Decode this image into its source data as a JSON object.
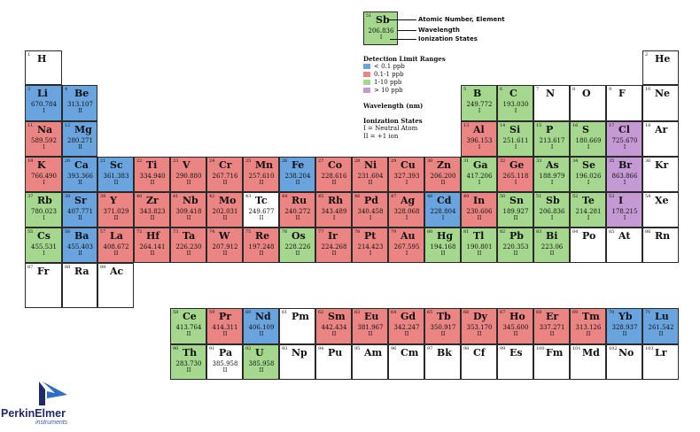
{
  "colors": {
    "blue": "#6aa4df",
    "red": "#ea8583",
    "green": "#a5d88e",
    "purple": "#c59ad4",
    "white": "#ffffff"
  },
  "key": {
    "z": "51",
    "symbol": "Sb",
    "wavelength": "206.836",
    "ion": "I",
    "color": "green",
    "label_element": "Atomic Number, Element",
    "label_wavelength": "Wavelength",
    "label_ion": "Ionization States"
  },
  "legend": {
    "detection_title": "Detection Limit Ranges",
    "ranges": [
      {
        "label": "< 0.1 ppb",
        "color": "blue"
      },
      {
        "label": "0.1-1 ppb",
        "color": "red"
      },
      {
        "label": "1-10 ppb",
        "color": "green"
      },
      {
        "label": "> 10 ppb",
        "color": "purple"
      }
    ],
    "wavelength_label": "Wavelength (nm)",
    "ion_title": "Ionization States",
    "ion_lines": [
      "I = Neutral Atom",
      "II = +1 ion"
    ]
  },
  "elements": [
    {
      "z": "1",
      "s": "H",
      "c": "white",
      "w": "",
      "i": "",
      "row": 0,
      "col": 0
    },
    {
      "z": "2",
      "s": "He",
      "c": "white",
      "w": "",
      "i": "",
      "row": 0,
      "col": 17
    },
    {
      "z": "3",
      "s": "Li",
      "c": "blue",
      "w": "670.784",
      "i": "I",
      "row": 1,
      "col": 0
    },
    {
      "z": "4",
      "s": "Be",
      "c": "blue",
      "w": "313.107",
      "i": "II",
      "row": 1,
      "col": 1
    },
    {
      "z": "5",
      "s": "B",
      "c": "green",
      "w": "249.772",
      "i": "I",
      "row": 1,
      "col": 12
    },
    {
      "z": "6",
      "s": "C",
      "c": "green",
      "w": "193.030",
      "i": "I",
      "row": 1,
      "col": 13
    },
    {
      "z": "7",
      "s": "N",
      "c": "white",
      "w": "",
      "i": "",
      "row": 1,
      "col": 14
    },
    {
      "z": "8",
      "s": "O",
      "c": "white",
      "w": "",
      "i": "",
      "row": 1,
      "col": 15
    },
    {
      "z": "9",
      "s": "F",
      "c": "white",
      "w": "",
      "i": "",
      "row": 1,
      "col": 16
    },
    {
      "z": "10",
      "s": "Ne",
      "c": "white",
      "w": "",
      "i": "",
      "row": 1,
      "col": 17
    },
    {
      "z": "11",
      "s": "Na",
      "c": "red",
      "w": "589.592",
      "i": "I",
      "row": 2,
      "col": 0
    },
    {
      "z": "12",
      "s": "Mg",
      "c": "blue",
      "w": "280.271",
      "i": "II",
      "row": 2,
      "col": 1
    },
    {
      "z": "13",
      "s": "Al",
      "c": "red",
      "w": "396.153",
      "i": "I",
      "row": 2,
      "col": 12
    },
    {
      "z": "14",
      "s": "Si",
      "c": "green",
      "w": "251.611",
      "i": "I",
      "row": 2,
      "col": 13
    },
    {
      "z": "15",
      "s": "P",
      "c": "green",
      "w": "213.617",
      "i": "I",
      "row": 2,
      "col": 14
    },
    {
      "z": "16",
      "s": "S",
      "c": "green",
      "w": "180.669",
      "i": "I",
      "row": 2,
      "col": 15
    },
    {
      "z": "17",
      "s": "Cl",
      "c": "purple",
      "w": "725.670",
      "i": "I",
      "row": 2,
      "col": 16
    },
    {
      "z": "18",
      "s": "Ar",
      "c": "white",
      "w": "",
      "i": "",
      "row": 2,
      "col": 17
    },
    {
      "z": "19",
      "s": "K",
      "c": "red",
      "w": "766.490",
      "i": "I",
      "row": 3,
      "col": 0
    },
    {
      "z": "20",
      "s": "Ca",
      "c": "blue",
      "w": "393.366",
      "i": "II",
      "row": 3,
      "col": 1
    },
    {
      "z": "21",
      "s": "Sc",
      "c": "blue",
      "w": "361.383",
      "i": "II",
      "row": 3,
      "col": 2
    },
    {
      "z": "22",
      "s": "Ti",
      "c": "red",
      "w": "334.940",
      "i": "II",
      "row": 3,
      "col": 3
    },
    {
      "z": "23",
      "s": "V",
      "c": "red",
      "w": "290.880",
      "i": "II",
      "row": 3,
      "col": 4
    },
    {
      "z": "24",
      "s": "Cr",
      "c": "red",
      "w": "267.716",
      "i": "II",
      "row": 3,
      "col": 5
    },
    {
      "z": "25",
      "s": "Mn",
      "c": "red",
      "w": "257.610",
      "i": "II",
      "row": 3,
      "col": 6
    },
    {
      "z": "26",
      "s": "Fe",
      "c": "blue",
      "w": "238.204",
      "i": "II",
      "row": 3,
      "col": 7
    },
    {
      "z": "27",
      "s": "Co",
      "c": "red",
      "w": "228.616",
      "i": "II",
      "row": 3,
      "col": 8
    },
    {
      "z": "28",
      "s": "Ni",
      "c": "red",
      "w": "231.604",
      "i": "II",
      "row": 3,
      "col": 9
    },
    {
      "z": "29",
      "s": "Cu",
      "c": "red",
      "w": "327.393",
      "i": "I",
      "row": 3,
      "col": 10
    },
    {
      "z": "30",
      "s": "Zn",
      "c": "red",
      "w": "206.200",
      "i": "II",
      "row": 3,
      "col": 11
    },
    {
      "z": "31",
      "s": "Ga",
      "c": "green",
      "w": "417.206",
      "i": "I",
      "row": 3,
      "col": 12
    },
    {
      "z": "32",
      "s": "Ge",
      "c": "red",
      "w": "265.118",
      "i": "I",
      "row": 3,
      "col": 13
    },
    {
      "z": "33",
      "s": "As",
      "c": "green",
      "w": "188.979",
      "i": "I",
      "row": 3,
      "col": 14
    },
    {
      "z": "34",
      "s": "Se",
      "c": "green",
      "w": "196.026",
      "i": "I",
      "row": 3,
      "col": 15
    },
    {
      "z": "35",
      "s": "Br",
      "c": "purple",
      "w": "863.866",
      "i": "I",
      "row": 3,
      "col": 16
    },
    {
      "z": "36",
      "s": "Kr",
      "c": "white",
      "w": "",
      "i": "",
      "row": 3,
      "col": 17
    },
    {
      "z": "37",
      "s": "Rb",
      "c": "green",
      "w": "780.023",
      "i": "I",
      "row": 4,
      "col": 0
    },
    {
      "z": "38",
      "s": "Sr",
      "c": "blue",
      "w": "407.771",
      "i": "II",
      "row": 4,
      "col": 1
    },
    {
      "z": "39",
      "s": "Y",
      "c": "red",
      "w": "371.029",
      "i": "II",
      "row": 4,
      "col": 2
    },
    {
      "z": "40",
      "s": "Zr",
      "c": "red",
      "w": "343.823",
      "i": "II",
      "row": 4,
      "col": 3
    },
    {
      "z": "41",
      "s": "Nb",
      "c": "red",
      "w": "309.418",
      "i": "II",
      "row": 4,
      "col": 4
    },
    {
      "z": "42",
      "s": "Mo",
      "c": "red",
      "w": "202.031",
      "i": "II",
      "row": 4,
      "col": 5
    },
    {
      "z": "43",
      "s": "Tc",
      "c": "white",
      "w": "249.677",
      "i": "II",
      "row": 4,
      "col": 6
    },
    {
      "z": "44",
      "s": "Ru",
      "c": "red",
      "w": "240.272",
      "i": "II",
      "row": 4,
      "col": 7
    },
    {
      "z": "45",
      "s": "Rh",
      "c": "red",
      "w": "343.489",
      "i": "I",
      "row": 4,
      "col": 8
    },
    {
      "z": "46",
      "s": "Pd",
      "c": "red",
      "w": "340.458",
      "i": "I",
      "row": 4,
      "col": 9
    },
    {
      "z": "47",
      "s": "Ag",
      "c": "red",
      "w": "328.068",
      "i": "I",
      "row": 4,
      "col": 10
    },
    {
      "z": "48",
      "s": "Cd",
      "c": "blue",
      "w": "228.804",
      "i": "I",
      "row": 4,
      "col": 11
    },
    {
      "z": "49",
      "s": "In",
      "c": "red",
      "w": "230.606",
      "i": "II",
      "row": 4,
      "col": 12
    },
    {
      "z": "50",
      "s": "Sn",
      "c": "green",
      "w": "189.927",
      "i": "II",
      "row": 4,
      "col": 13
    },
    {
      "z": "51",
      "s": "Sb",
      "c": "green",
      "w": "206.836",
      "i": "I",
      "row": 4,
      "col": 14
    },
    {
      "z": "52",
      "s": "Te",
      "c": "green",
      "w": "214.281",
      "i": "I",
      "row": 4,
      "col": 15
    },
    {
      "z": "53",
      "s": "I",
      "c": "purple",
      "w": "178.215",
      "i": "I",
      "row": 4,
      "col": 16
    },
    {
      "z": "54",
      "s": "Xe",
      "c": "white",
      "w": "",
      "i": "",
      "row": 4,
      "col": 17
    },
    {
      "z": "55",
      "s": "Cs",
      "c": "green",
      "w": "455.531",
      "i": "I",
      "row": 5,
      "col": 0
    },
    {
      "z": "56",
      "s": "Ba",
      "c": "blue",
      "w": "455.403",
      "i": "II",
      "row": 5,
      "col": 1
    },
    {
      "z": "57",
      "s": "La",
      "c": "red",
      "w": "408.672",
      "i": "II",
      "row": 5,
      "col": 2
    },
    {
      "z": "72",
      "s": "Hf",
      "c": "red",
      "w": "264.141",
      "i": "II",
      "row": 5,
      "col": 3
    },
    {
      "z": "73",
      "s": "Ta",
      "c": "red",
      "w": "226.230",
      "i": "II",
      "row": 5,
      "col": 4
    },
    {
      "z": "74",
      "s": "W",
      "c": "red",
      "w": "207.912",
      "i": "II",
      "row": 5,
      "col": 5
    },
    {
      "z": "75",
      "s": "Re",
      "c": "red",
      "w": "197.248",
      "i": "II",
      "row": 5,
      "col": 6
    },
    {
      "z": "76",
      "s": "Os",
      "c": "green",
      "w": "228.226",
      "i": "II",
      "row": 5,
      "col": 7
    },
    {
      "z": "77",
      "s": "Ir",
      "c": "red",
      "w": "224.268",
      "i": "II",
      "row": 5,
      "col": 8
    },
    {
      "z": "78",
      "s": "Pt",
      "c": "red",
      "w": "214.423",
      "i": "I",
      "row": 5,
      "col": 9
    },
    {
      "z": "79",
      "s": "Au",
      "c": "red",
      "w": "267.595",
      "i": "I",
      "row": 5,
      "col": 10
    },
    {
      "z": "80",
      "s": "Hg",
      "c": "green",
      "w": "194.168",
      "i": "II",
      "row": 5,
      "col": 11
    },
    {
      "z": "81",
      "s": "Tl",
      "c": "green",
      "w": "190.801",
      "i": "II",
      "row": 5,
      "col": 12
    },
    {
      "z": "82",
      "s": "Pb",
      "c": "green",
      "w": "220.353",
      "i": "II",
      "row": 5,
      "col": 13
    },
    {
      "z": "83",
      "s": "Bi",
      "c": "green",
      "w": "223.06",
      "i": "II",
      "row": 5,
      "col": 14
    },
    {
      "z": "84",
      "s": "Po",
      "c": "white",
      "w": "",
      "i": "",
      "row": 5,
      "col": 15
    },
    {
      "z": "85",
      "s": "At",
      "c": "white",
      "w": "",
      "i": "",
      "row": 5,
      "col": 16
    },
    {
      "z": "86",
      "s": "Rn",
      "c": "white",
      "w": "",
      "i": "",
      "row": 5,
      "col": 17
    },
    {
      "z": "87",
      "s": "Fr",
      "c": "white",
      "w": "",
      "i": "",
      "row": 6,
      "col": 0
    },
    {
      "z": "88",
      "s": "Ra",
      "c": "white",
      "w": "",
      "i": "",
      "row": 6,
      "col": 1
    },
    {
      "z": "89",
      "s": "Ac",
      "c": "white",
      "w": "",
      "i": "",
      "row": 6,
      "col": 2
    },
    {
      "z": "58",
      "s": "Ce",
      "c": "green",
      "w": "413.764",
      "i": "II",
      "row": 7,
      "col": 4
    },
    {
      "z": "59",
      "s": "Pr",
      "c": "red",
      "w": "414.311",
      "i": "II",
      "row": 7,
      "col": 5
    },
    {
      "z": "60",
      "s": "Nd",
      "c": "blue",
      "w": "406.109",
      "i": "II",
      "row": 7,
      "col": 6
    },
    {
      "z": "61",
      "s": "Pm",
      "c": "white",
      "w": "",
      "i": "",
      "row": 7,
      "col": 7
    },
    {
      "z": "62",
      "s": "Sm",
      "c": "red",
      "w": "442.434",
      "i": "II",
      "row": 7,
      "col": 8
    },
    {
      "z": "63",
      "s": "Eu",
      "c": "red",
      "w": "381.967",
      "i": "II",
      "row": 7,
      "col": 9
    },
    {
      "z": "64",
      "s": "Gd",
      "c": "red",
      "w": "342.247",
      "i": "II",
      "row": 7,
      "col": 10
    },
    {
      "z": "65",
      "s": "Tb",
      "c": "red",
      "w": "350.917",
      "i": "II",
      "row": 7,
      "col": 11
    },
    {
      "z": "66",
      "s": "Dy",
      "c": "red",
      "w": "353.170",
      "i": "II",
      "row": 7,
      "col": 12
    },
    {
      "z": "67",
      "s": "Ho",
      "c": "red",
      "w": "345.600",
      "i": "II",
      "row": 7,
      "col": 13
    },
    {
      "z": "68",
      "s": "Er",
      "c": "red",
      "w": "337.271",
      "i": "II",
      "row": 7,
      "col": 14
    },
    {
      "z": "69",
      "s": "Tm",
      "c": "red",
      "w": "313.126",
      "i": "II",
      "row": 7,
      "col": 15
    },
    {
      "z": "70",
      "s": "Yb",
      "c": "blue",
      "w": "328.937",
      "i": "II",
      "row": 7,
      "col": 16
    },
    {
      "z": "71",
      "s": "Lu",
      "c": "blue",
      "w": "261.542",
      "i": "II",
      "row": 7,
      "col": 17
    },
    {
      "z": "90",
      "s": "Th",
      "c": "green",
      "w": "283.730",
      "i": "II",
      "row": 8,
      "col": 4
    },
    {
      "z": "91",
      "s": "Pa",
      "c": "white",
      "w": "385.958",
      "i": "II",
      "row": 8,
      "col": 5
    },
    {
      "z": "92",
      "s": "U",
      "c": "green",
      "w": "385.958",
      "i": "II",
      "row": 8,
      "col": 6
    },
    {
      "z": "93",
      "s": "Np",
      "c": "white",
      "w": "",
      "i": "",
      "row": 8,
      "col": 7
    },
    {
      "z": "94",
      "s": "Pu",
      "c": "white",
      "w": "",
      "i": "",
      "row": 8,
      "col": 8
    },
    {
      "z": "95",
      "s": "Am",
      "c": "white",
      "w": "",
      "i": "",
      "row": 8,
      "col": 9
    },
    {
      "z": "96",
      "s": "Cm",
      "c": "white",
      "w": "",
      "i": "",
      "row": 8,
      "col": 10
    },
    {
      "z": "97",
      "s": "Bk",
      "c": "white",
      "w": "",
      "i": "",
      "row": 8,
      "col": 11
    },
    {
      "z": "98",
      "s": "Cf",
      "c": "white",
      "w": "",
      "i": "",
      "row": 8,
      "col": 12
    },
    {
      "z": "99",
      "s": "Es",
      "c": "white",
      "w": "",
      "i": "",
      "row": 8,
      "col": 13
    },
    {
      "z": "100",
      "s": "Fm",
      "c": "white",
      "w": "",
      "i": "",
      "row": 8,
      "col": 14
    },
    {
      "z": "101",
      "s": "Md",
      "c": "white",
      "w": "",
      "i": "",
      "row": 8,
      "col": 15
    },
    {
      "z": "102",
      "s": "No",
      "c": "white",
      "w": "",
      "i": "",
      "row": 8,
      "col": 16
    },
    {
      "z": "103",
      "s": "Lr",
      "c": "white",
      "w": "",
      "i": "",
      "row": 8,
      "col": 17
    }
  ],
  "logo": {
    "brand": "PerkinElmer",
    "sub": "instruments",
    "icon": "perkinelmer-logo-icon"
  }
}
